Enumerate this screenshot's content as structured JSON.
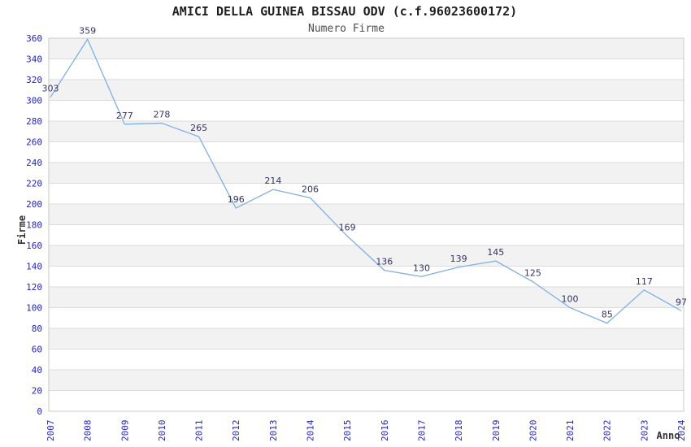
{
  "chart_data": {
    "type": "line",
    "title": "AMICI DELLA GUINEA BISSAU ODV (c.f.96023600172)",
    "subtitle": "Numero Firme",
    "xlabel": "Anno",
    "ylabel": "Firme",
    "categories": [
      "2007",
      "2008",
      "2009",
      "2010",
      "2011",
      "2012",
      "2013",
      "2014",
      "2015",
      "2016",
      "2017",
      "2018",
      "2019",
      "2020",
      "2021",
      "2022",
      "2023",
      "2024"
    ],
    "values": [
      303,
      359,
      277,
      278,
      265,
      196,
      214,
      206,
      169,
      136,
      130,
      139,
      145,
      125,
      100,
      85,
      117,
      97
    ],
    "ylim": [
      0,
      360
    ],
    "ytick_step": 20,
    "grid": "horizontal",
    "banded_background": true,
    "legend": "none",
    "data_labels_visible": true,
    "colors": {
      "line": "#7fb0e4",
      "tick_label": "#2222cc",
      "data_label": "#333366",
      "band": "#f2f2f2",
      "gridline": "#dcdcdc",
      "plot_border": "#c9c9c9",
      "title_text": "#1f1f1f",
      "subtitle_text": "#4d4d4d",
      "axis_title_text": "#333333",
      "background": "#ffffff"
    }
  }
}
